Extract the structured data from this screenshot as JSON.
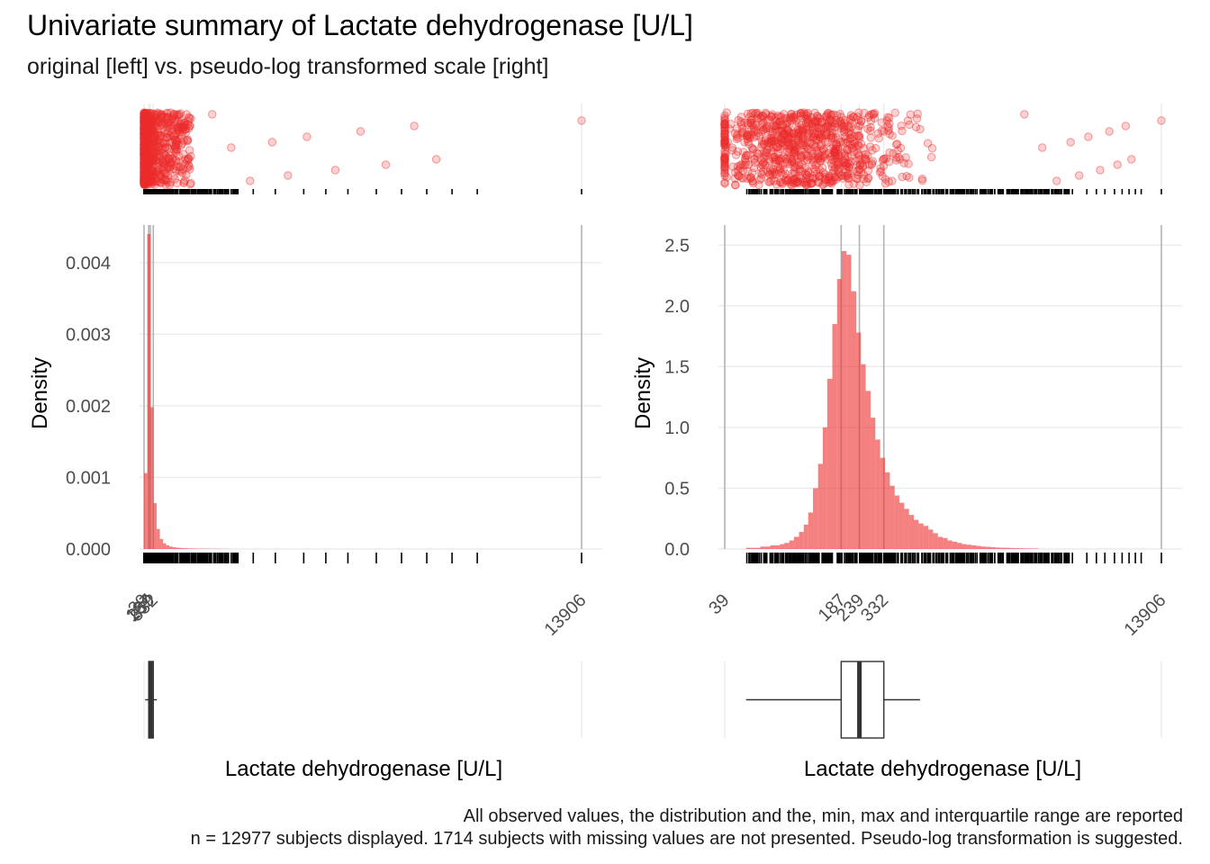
{
  "title": "Univariate summary of Lactate dehydrogenase [U/L]",
  "subtitle": "original [left] vs. pseudo-log transformed scale [right]",
  "caption": [
    "All observed values, the distribution and the, min, max and interquartile range are reported",
    "n = 12977 subjects displayed. 1714 subjects with missing values are not presented. Pseudo-log transformation is suggested."
  ],
  "colors": {
    "fill": "#EE2C2C",
    "rug": "#000000",
    "vline": "#b3b3b3",
    "grid": "#ebebeb",
    "box": "#333333"
  },
  "chart_data": [
    {
      "type": "bar",
      "panel": "left",
      "scale": "original",
      "xlabel": "Lactate dehydrogenase [U/L]",
      "ylabel": "Density",
      "xlim": [
        39,
        13906
      ],
      "ylim": [
        0,
        0.0045
      ],
      "yticks": [
        0,
        0.001,
        0.002,
        0.003,
        0.004
      ],
      "ytick_labels": [
        "0.000",
        "0.001",
        "0.002",
        "0.003",
        "0.004"
      ],
      "xticks": [
        39,
        187,
        239,
        332,
        13906
      ],
      "xtick_labels": [
        "39",
        "187",
        "239",
        "332",
        "13906"
      ],
      "vlines": [
        39,
        187,
        239,
        332,
        13906
      ],
      "bin_width": 100,
      "bins_start": [
        39,
        139,
        239,
        339,
        439,
        539,
        639,
        739,
        839,
        939,
        1039,
        1139,
        1239,
        1339,
        1439,
        1539,
        1639,
        1739,
        1839,
        1939,
        2039,
        2139,
        2239,
        2339,
        2439,
        2539,
        2639
      ],
      "densities": [
        0.00106,
        0.0044,
        0.00198,
        0.00064,
        0.00028,
        0.00014,
        8e-05,
        5e-05,
        3.5e-05,
        2.5e-05,
        2e-05,
        1.5e-05,
        1.2e-05,
        1e-05,
        8e-06,
        7e-06,
        6e-06,
        5e-06,
        5e-06,
        4e-06,
        4e-06,
        3e-06,
        3e-06,
        3e-06,
        2e-06,
        2e-06,
        2e-06
      ],
      "boxplot": {
        "min": 39,
        "q1": 187,
        "median": 239,
        "q3": 332,
        "max": 13906
      }
    },
    {
      "type": "bar",
      "panel": "right",
      "scale": "pseudo-log",
      "xlabel": "Lactate dehydrogenase [U/L]",
      "ylabel": "Density",
      "xlim": [
        39,
        13906
      ],
      "ylim": [
        0,
        2.65
      ],
      "yticks": [
        0,
        0.5,
        1.0,
        1.5,
        2.0,
        2.5
      ],
      "ytick_labels": [
        "0.0",
        "0.5",
        "1.0",
        "1.5",
        "2.0",
        "2.5"
      ],
      "xticks": [
        39,
        187,
        239,
        332,
        13906
      ],
      "xtick_labels": [
        "39",
        "187",
        "239",
        "332",
        "13906"
      ],
      "vlines": [
        39,
        187,
        239,
        332,
        13906
      ],
      "bins_start": [
        52,
        56,
        59,
        63,
        67,
        72,
        77,
        82,
        87,
        93,
        99,
        106,
        113,
        120,
        128,
        137,
        146,
        155,
        166,
        177,
        188,
        201,
        214,
        229,
        244,
        260,
        278,
        296,
        316,
        337,
        360,
        384,
        409,
        437,
        466,
        497,
        530,
        566,
        604,
        644,
        687,
        733,
        782,
        834,
        890,
        950,
        1013,
        1081,
        1153,
        1231,
        1313,
        1401,
        1495,
        1595,
        1702,
        1816,
        1938,
        2068,
        2206,
        2354,
        2512
      ],
      "densities": [
        0.01,
        0.01,
        0.01,
        0.02,
        0.02,
        0.03,
        0.03,
        0.04,
        0.05,
        0.07,
        0.1,
        0.14,
        0.2,
        0.3,
        0.5,
        0.7,
        1.0,
        1.4,
        1.85,
        2.22,
        2.45,
        2.42,
        2.12,
        1.78,
        1.52,
        1.3,
        1.08,
        0.9,
        0.75,
        0.63,
        0.52,
        0.44,
        0.38,
        0.33,
        0.28,
        0.24,
        0.21,
        0.19,
        0.16,
        0.13,
        0.1,
        0.09,
        0.07,
        0.06,
        0.05,
        0.04,
        0.035,
        0.03,
        0.025,
        0.02,
        0.018,
        0.015,
        0.012,
        0.01,
        0.01,
        0.008,
        0.007,
        0.006,
        0.005,
        0.004,
        0.004
      ],
      "boxplot": {
        "min": 39,
        "q1": 187,
        "median": 239,
        "q3": 332,
        "max": 13906,
        "whisker_low": 52,
        "whisker_high": 540
      }
    }
  ]
}
